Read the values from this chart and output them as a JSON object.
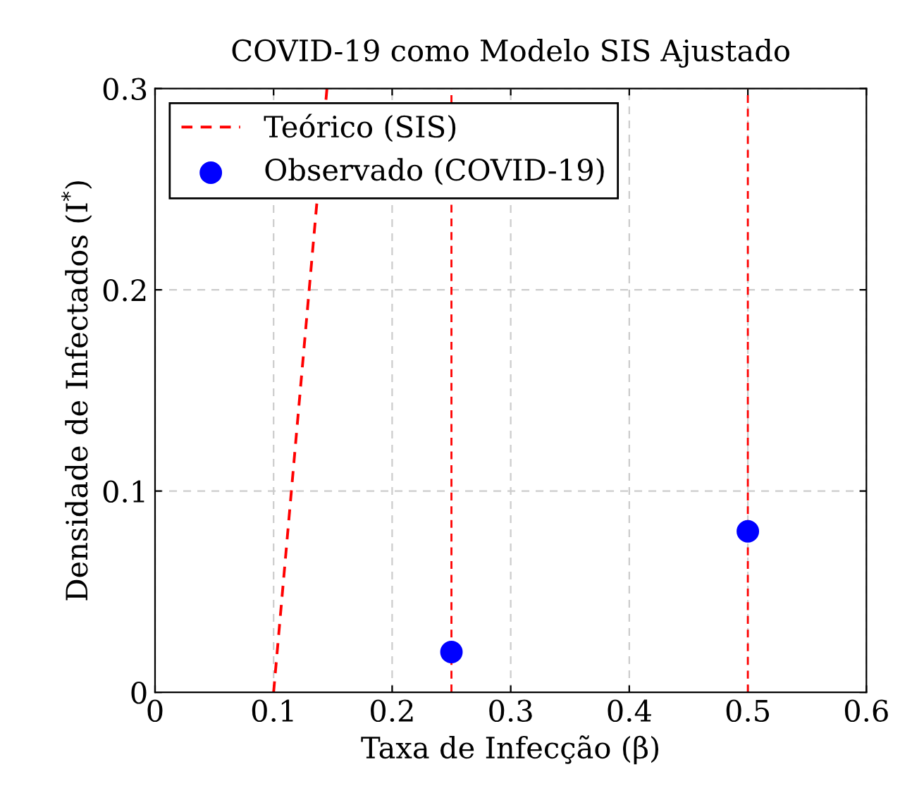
{
  "chart_data": {
    "type": "line",
    "title": "COVID-19 como Modelo SIS Ajustado",
    "xlabel": "Taxa de Infecção (β)",
    "ylabel": "Densidade de Infectados (I$^{*}$)",
    "series": [
      {
        "name": "Teórico (SIS)",
        "color": "#ff0000",
        "line_style": "dashed",
        "marker": "none",
        "x": [
          0.1,
          0.145
        ],
        "values": [
          0,
          0.3
        ]
      },
      {
        "name": "Observado (COVID-19)",
        "type": "scatter",
        "color": "#0000ff",
        "marker": "circle",
        "x": [
          0.25,
          0.5
        ],
        "values": [
          0.02,
          0.08
        ]
      }
    ],
    "ref_lines": [
      {
        "axis": "x",
        "value": 0.25,
        "label": null,
        "color": "#ff0000",
        "line_style": "dashed"
      },
      {
        "axis": "x",
        "value": 0.5,
        "label": null,
        "color": "#ff0000",
        "line_style": "dashed"
      }
    ],
    "xlim": [
      0,
      0.6
    ],
    "ylim": [
      0,
      0.3
    ],
    "xticks": [
      0,
      0.1,
      0.2,
      0.3,
      0.4,
      0.5,
      0.6
    ],
    "yticks": [
      0,
      0.1,
      0.2,
      0.3
    ],
    "grid": true,
    "legend": "top left"
  }
}
